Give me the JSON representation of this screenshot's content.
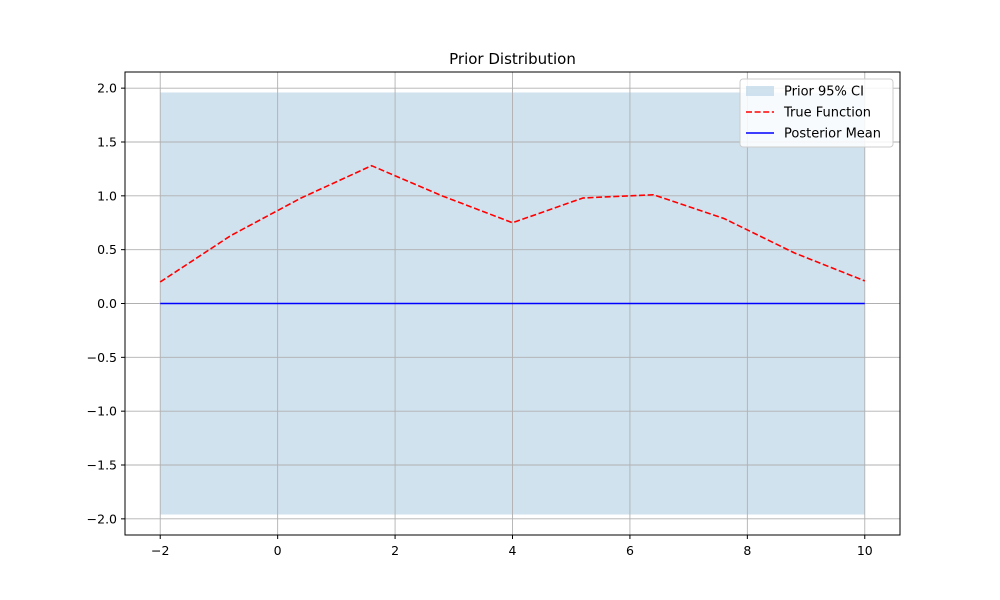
{
  "chart_data": {
    "type": "line",
    "title": "Prior Distribution",
    "xlabel": "",
    "ylabel": "",
    "xlim": [
      -2.6,
      10.6
    ],
    "ylim": [
      -2.15,
      2.15
    ],
    "x_ticks": [
      -2,
      0,
      2,
      4,
      6,
      8,
      10
    ],
    "x_tick_labels": [
      "−2",
      "0",
      "2",
      "4",
      "6",
      "8",
      "10"
    ],
    "y_ticks": [
      -2.0,
      -1.5,
      -1.0,
      -0.5,
      0.0,
      0.5,
      1.0,
      1.5,
      2.0
    ],
    "y_tick_labels": [
      "−2.0",
      "−1.5",
      "−1.0",
      "−0.5",
      "0.0",
      "0.5",
      "1.0",
      "1.5",
      "2.0"
    ],
    "grid": true,
    "legend_position": "top-right",
    "series": [
      {
        "name": "Prior 95% CI",
        "kind": "band",
        "color": "#b9d3e6",
        "x": [
          -2,
          10
        ],
        "lower": [
          -1.96,
          -1.96
        ],
        "upper": [
          1.96,
          1.96
        ]
      },
      {
        "name": "True Function",
        "kind": "line",
        "style": "dashed",
        "color": "#ff0000",
        "x": [
          -2,
          -0.8,
          0.4,
          1.6,
          2.8,
          4.0,
          5.2,
          6.4,
          7.6,
          8.8,
          10
        ],
        "values": [
          0.2,
          0.63,
          0.98,
          1.28,
          1.0,
          0.75,
          0.98,
          1.01,
          0.79,
          0.47,
          0.21
        ]
      },
      {
        "name": "Posterior Mean",
        "kind": "line",
        "style": "solid",
        "color": "#0000ff",
        "x": [
          -2,
          10
        ],
        "values": [
          0.0,
          0.0
        ]
      }
    ]
  }
}
